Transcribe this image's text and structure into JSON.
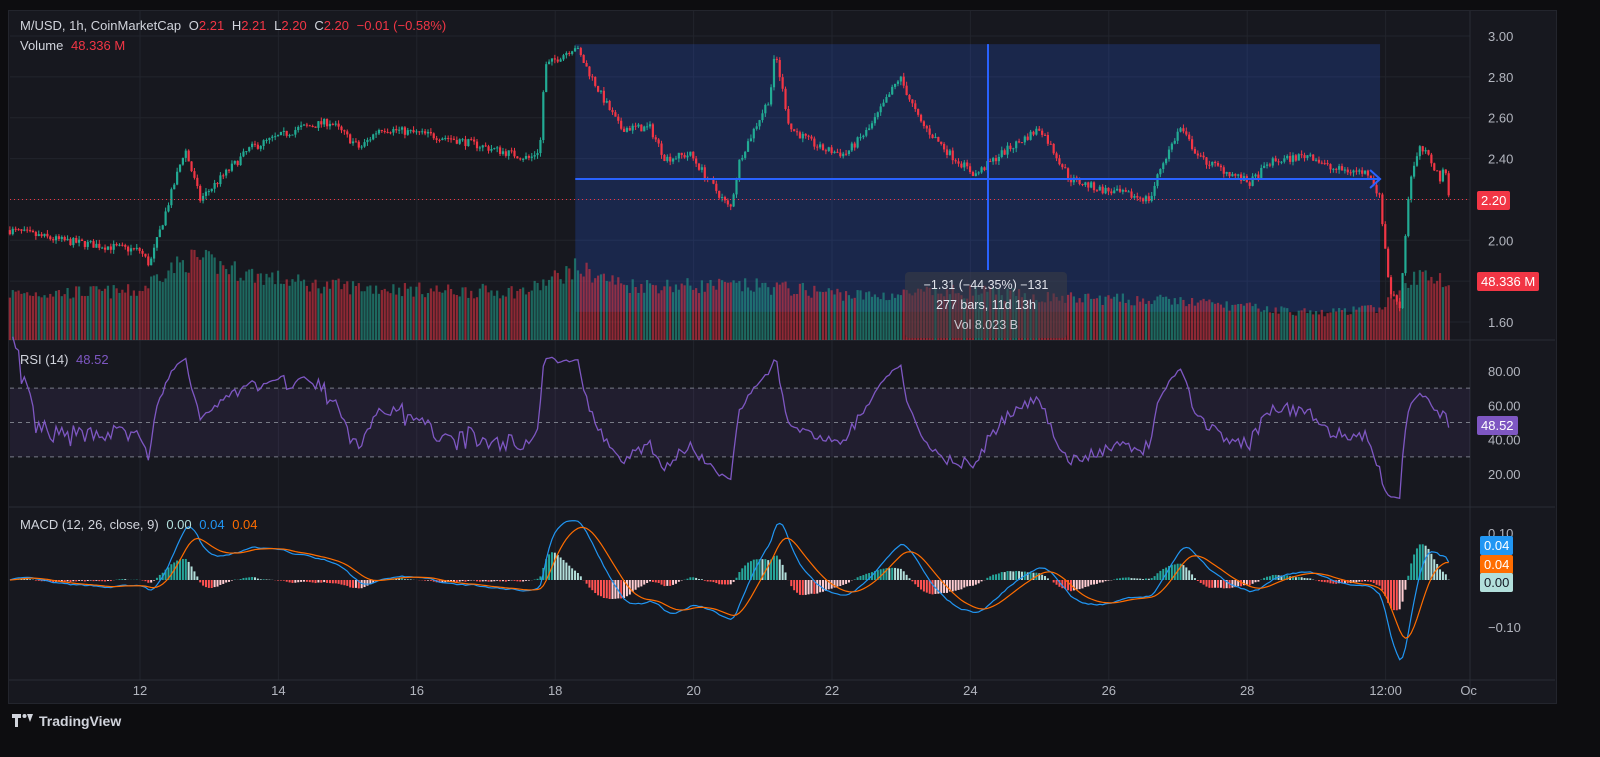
{
  "header": {
    "symbol": "M/USD, 1h, CoinMarketCap",
    "o_label": "O",
    "o": "2.21",
    "h_label": "H",
    "h": "2.21",
    "l_label": "L",
    "l": "2.20",
    "c_label": "C",
    "c": "2.20",
    "change": "−0.01 (−0.58%)",
    "volume_label": "Volume",
    "volume": "48.336 M"
  },
  "rsi": {
    "label": "RSI (14)",
    "value": "48.52",
    "ticks": [
      "80.00",
      "60.00",
      "40.00",
      "20.00"
    ],
    "bands": [
      70,
      50,
      30
    ]
  },
  "macd": {
    "label": "MACD (12, 26, close, 9)",
    "hist": "0.00",
    "macd": "0.04",
    "signal": "0.04",
    "ticks": [
      "0.10",
      "−0.10"
    ]
  },
  "price_axis": {
    "ticks": [
      "3.00",
      "2.80",
      "2.60",
      "2.40",
      "2.20",
      "2.00",
      "1.60"
    ],
    "current_price": "2.20",
    "current_volume": "48.336 M"
  },
  "time_axis": {
    "ticks": [
      "12",
      "14",
      "16",
      "18",
      "20",
      "22",
      "24",
      "26",
      "28",
      "12:00",
      "Oc"
    ]
  },
  "measure": {
    "line1": "−1.31 (−44.35%) −131",
    "line2": "277 bars, 11d 13h",
    "line3": "Vol 8.023 B"
  },
  "footer": {
    "brand": "TradingView"
  },
  "colors": {
    "up": "#22ab94",
    "down": "#f23645",
    "rsi": "#7e57c2",
    "macd": "#2196f3",
    "signal": "#ff6d00",
    "hist_up": "#b2dfdb",
    "measure": "#2962ff"
  },
  "chart_data": {
    "type": "candlestick",
    "x_unit": "day of month",
    "price_waypoints": [
      [
        10.12,
        2.05
      ],
      [
        10.84,
        2.0
      ],
      [
        12.0,
        1.95
      ],
      [
        12.14,
        1.88
      ],
      [
        12.65,
        2.45
      ],
      [
        12.87,
        2.2
      ],
      [
        13.59,
        2.45
      ],
      [
        14.31,
        2.55
      ],
      [
        14.75,
        2.58
      ],
      [
        15.18,
        2.45
      ],
      [
        15.47,
        2.55
      ],
      [
        16.48,
        2.5
      ],
      [
        17.64,
        2.4
      ],
      [
        17.78,
        2.45
      ],
      [
        17.85,
        2.85
      ],
      [
        18.29,
        2.95
      ],
      [
        18.65,
        2.72
      ],
      [
        18.94,
        2.55
      ],
      [
        19.37,
        2.55
      ],
      [
        19.59,
        2.4
      ],
      [
        19.95,
        2.42
      ],
      [
        20.53,
        2.15
      ],
      [
        20.67,
        2.4
      ],
      [
        21.1,
        2.7
      ],
      [
        21.18,
        2.92
      ],
      [
        21.39,
        2.55
      ],
      [
        21.83,
        2.45
      ],
      [
        22.19,
        2.42
      ],
      [
        22.55,
        2.55
      ],
      [
        22.98,
        2.8
      ],
      [
        23.27,
        2.58
      ],
      [
        23.71,
        2.42
      ],
      [
        24.07,
        2.32
      ],
      [
        24.43,
        2.42
      ],
      [
        25.01,
        2.55
      ],
      [
        25.44,
        2.3
      ],
      [
        25.87,
        2.25
      ],
      [
        26.6,
        2.2
      ],
      [
        26.74,
        2.35
      ],
      [
        27.03,
        2.55
      ],
      [
        27.32,
        2.4
      ],
      [
        28.04,
        2.28
      ],
      [
        28.33,
        2.38
      ],
      [
        28.91,
        2.42
      ],
      [
        29.2,
        2.35
      ],
      [
        29.77,
        2.33
      ],
      [
        29.92,
        2.2
      ],
      [
        30.06,
        1.75
      ],
      [
        30.21,
        1.68
      ],
      [
        30.28,
        2.0
      ],
      [
        30.35,
        2.3
      ],
      [
        30.5,
        2.45
      ],
      [
        30.64,
        2.4
      ],
      [
        30.79,
        2.3
      ],
      [
        30.86,
        2.35
      ],
      [
        30.93,
        2.2
      ]
    ],
    "volume_waypoints_M": [
      [
        10.12,
        38
      ],
      [
        12.0,
        40
      ],
      [
        12.3,
        55
      ],
      [
        12.8,
        67
      ],
      [
        13.5,
        55
      ],
      [
        14.5,
        45
      ],
      [
        16.5,
        40
      ],
      [
        17.6,
        40
      ],
      [
        18.3,
        59
      ],
      [
        19.0,
        45
      ],
      [
        21.0,
        44
      ],
      [
        22.5,
        36
      ],
      [
        24.0,
        40
      ],
      [
        25.0,
        35
      ],
      [
        27.0,
        32
      ],
      [
        29.0,
        22
      ],
      [
        29.9,
        26
      ],
      [
        30.2,
        38
      ],
      [
        30.5,
        54
      ],
      [
        30.93,
        48.336
      ]
    ],
    "price_range": [
      1.52,
      3.04
    ],
    "rsi_range": [
      0,
      95
    ],
    "measure_range": {
      "from_day": 18.29,
      "to_day": 29.92,
      "from_price": 2.96,
      "to_price": 1.65,
      "mid_price": 2.3
    }
  }
}
